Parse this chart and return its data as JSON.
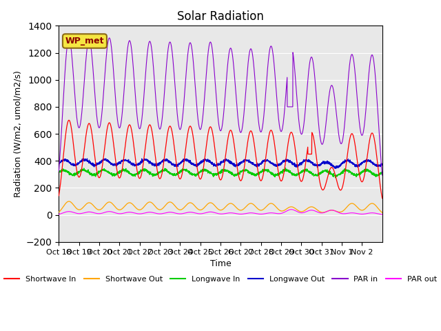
{
  "title": "Solar Radiation",
  "ylabel": "Radiation (W/m2, umol/m2/s)",
  "xlabel": "Time",
  "xlabels": [
    "Oct 18",
    "Oct 19",
    "Oct 20",
    "Oct 21",
    "Oct 22",
    "Oct 23",
    "Oct 24",
    "Oct 25",
    "Oct 26",
    "Oct 27",
    "Oct 28",
    "Oct 29",
    "Oct 30",
    "Oct 31",
    "Nov 1",
    "Nov 2"
  ],
  "ylim": [
    -200,
    1400
  ],
  "yticks": [
    -200,
    0,
    200,
    400,
    600,
    800,
    1000,
    1200,
    1400
  ],
  "colors": {
    "shortwave_in": "#ff0000",
    "shortwave_out": "#ffa500",
    "longwave_in": "#00cc00",
    "longwave_out": "#0000cc",
    "par_in": "#8800cc",
    "par_out": "#ff00ff"
  },
  "station_label": "WP_met",
  "background_color": "#e8e8e8",
  "n_days": 16,
  "points_per_day": 144,
  "par_in_peaks": [
    1300,
    1285,
    1300,
    1280,
    1275,
    1270,
    1265,
    1270,
    1225,
    1220,
    1240,
    1235,
    1160,
    950,
    1180,
    1180
  ],
  "sw_in_peaks": [
    700,
    675,
    680,
    665,
    665,
    655,
    655,
    650,
    625,
    620,
    625,
    610,
    610,
    350,
    600,
    605
  ],
  "sw_out_peaks": [
    100,
    90,
    95,
    90,
    95,
    95,
    90,
    90,
    85,
    85,
    85,
    60,
    60,
    35,
    85,
    85
  ],
  "par_out_peaks": [
    25,
    22,
    25,
    20,
    20,
    20,
    20,
    22,
    15,
    15,
    15,
    40,
    35,
    35,
    15,
    15
  ]
}
